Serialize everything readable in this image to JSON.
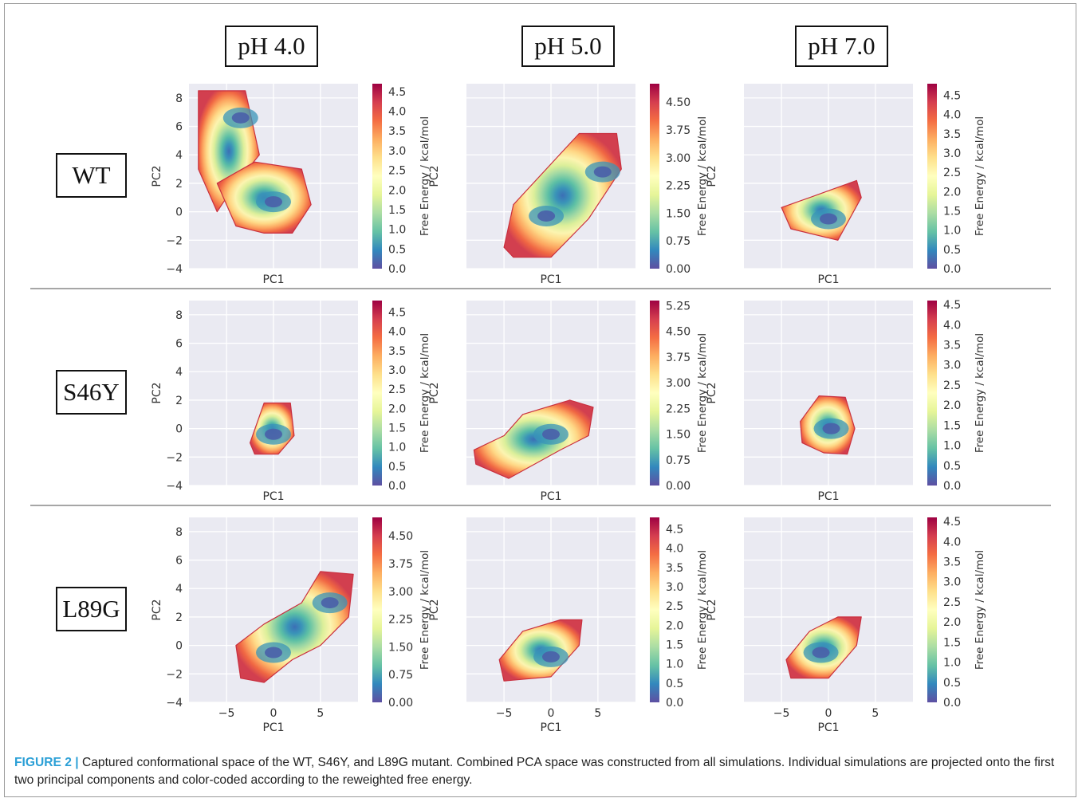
{
  "figure": {
    "column_headers": [
      "pH 4.0",
      "pH 5.0",
      "pH 7.0"
    ],
    "row_labels": [
      "WT",
      "S46Y",
      "L89G"
    ],
    "caption_label": "FIGURE 2 |",
    "caption_text": " Captured conformational space of the WT, S46Y, and L89G mutant. Combined PCA space was constructed from all simulations. Individual simulations are projected onto the first two principal components and color-coded according to the reweighted free energy."
  },
  "chart_data": [
    {
      "panel": "WT pH 4.0",
      "type": "heatmap",
      "xlabel": "PC1",
      "ylabel": "PC2",
      "ylim": [
        -4,
        9
      ],
      "xlim": [
        -9,
        9
      ],
      "yticks": [
        -4,
        -2,
        0,
        2,
        4,
        6,
        8
      ],
      "xticks": [],
      "colorbar": {
        "label": "Free Energy / kcal/mol",
        "ticks": [
          "0.0",
          "0.5",
          "1.0",
          "1.5",
          "2.0",
          "2.5",
          "3.0",
          "3.5",
          "4.0",
          "4.5"
        ],
        "range": [
          0,
          4.7
        ]
      },
      "minima": [
        {
          "x": -3.5,
          "y": 6.6
        },
        {
          "x": 0,
          "y": 0.7
        }
      ],
      "regions": [
        {
          "x": [
            -8,
            -3,
            -1.5,
            -4,
            -6,
            -8
          ],
          "y": [
            8.5,
            8.5,
            4,
            2,
            0,
            3
          ]
        },
        {
          "x": [
            -6,
            -2,
            3,
            4,
            2,
            -1,
            -4
          ],
          "y": [
            2,
            3.5,
            3,
            0.5,
            -1.5,
            -1.5,
            -1
          ]
        }
      ]
    },
    {
      "panel": "WT pH 5.0",
      "type": "heatmap",
      "xlabel": "PC1",
      "ylabel": "PC2",
      "ylim": [
        -4,
        9
      ],
      "xlim": [
        -9,
        9
      ],
      "yticks": [],
      "xticks": [],
      "colorbar": {
        "label": "Free Energy / kcal/mol",
        "ticks": [
          "0.00",
          "0.75",
          "1.50",
          "2.25",
          "3.00",
          "3.75",
          "4.50"
        ],
        "range": [
          0,
          5.0
        ]
      },
      "minima": [
        {
          "x": -0.5,
          "y": -0.3
        },
        {
          "x": 5.5,
          "y": 2.8
        }
      ],
      "regions": [
        {
          "x": [
            -5,
            -4,
            3,
            7,
            7.5,
            4,
            0,
            -4
          ],
          "y": [
            -2.5,
            0.5,
            5.5,
            5.5,
            3,
            -0.5,
            -3.2,
            -3.2
          ]
        }
      ]
    },
    {
      "panel": "WT pH 7.0",
      "type": "heatmap",
      "xlabel": "PC1",
      "ylabel": "PC2",
      "ylim": [
        -4,
        9
      ],
      "xlim": [
        -9,
        9
      ],
      "yticks": [],
      "xticks": [],
      "colorbar": {
        "label": "Free Energy / kcal/mol",
        "ticks": [
          "0.0",
          "0.5",
          "1.0",
          "1.5",
          "2.0",
          "2.5",
          "3.0",
          "3.5",
          "4.0",
          "4.5"
        ],
        "range": [
          0,
          4.8
        ]
      },
      "minima": [
        {
          "x": 0,
          "y": -0.5
        }
      ],
      "regions": [
        {
          "x": [
            -5,
            -2,
            3,
            3.5,
            1,
            -4
          ],
          "y": [
            0.3,
            1,
            2.2,
            1,
            -2,
            -1.2
          ]
        }
      ]
    },
    {
      "panel": "S46Y pH 4.0",
      "type": "heatmap",
      "xlabel": "PC1",
      "ylabel": "PC2",
      "ylim": [
        -4,
        9
      ],
      "xlim": [
        -9,
        9
      ],
      "yticks": [
        -4,
        -2,
        0,
        2,
        4,
        6,
        8
      ],
      "xticks": [],
      "colorbar": {
        "label": "Free Energy / kcal/mol",
        "ticks": [
          "0.0",
          "0.5",
          "1.0",
          "1.5",
          "2.0",
          "2.5",
          "3.0",
          "3.5",
          "4.0",
          "4.5"
        ],
        "range": [
          0,
          4.8
        ]
      },
      "minima": [
        {
          "x": 0,
          "y": -0.4
        }
      ],
      "regions": [
        {
          "x": [
            -2.5,
            -1,
            1.8,
            2.2,
            0.5,
            -2
          ],
          "y": [
            -1,
            1.8,
            1.8,
            -0.5,
            -1.8,
            -1.8
          ]
        }
      ]
    },
    {
      "panel": "S46Y pH 5.0",
      "type": "heatmap",
      "xlabel": "PC1",
      "ylabel": "PC2",
      "ylim": [
        -4,
        9
      ],
      "xlim": [
        -9,
        9
      ],
      "yticks": [],
      "xticks": [],
      "colorbar": {
        "label": "Free Energy / kcal/mol",
        "ticks": [
          "0.00",
          "0.75",
          "1.50",
          "2.25",
          "3.00",
          "3.75",
          "4.50",
          "5.25"
        ],
        "range": [
          0,
          5.4
        ]
      },
      "minima": [
        {
          "x": 0,
          "y": -0.4
        }
      ],
      "regions": [
        {
          "x": [
            -8.2,
            -5,
            -3,
            2,
            4.5,
            4,
            1,
            -4.5,
            -8
          ],
          "y": [
            -1.5,
            -0.5,
            1,
            2,
            1.5,
            -0.5,
            -1.5,
            -3.5,
            -2.5
          ]
        }
      ]
    },
    {
      "panel": "S46Y pH 7.0",
      "type": "heatmap",
      "xlabel": "PC1",
      "ylabel": "PC2",
      "ylim": [
        -4,
        9
      ],
      "xlim": [
        -9,
        9
      ],
      "yticks": [],
      "xticks": [],
      "colorbar": {
        "label": "Free Energy / kcal/mol",
        "ticks": [
          "0.0",
          "0.5",
          "1.0",
          "1.5",
          "2.0",
          "2.5",
          "3.0",
          "3.5",
          "4.0",
          "4.5"
        ],
        "range": [
          0,
          4.6
        ]
      },
      "minima": [
        {
          "x": 0.3,
          "y": 0
        }
      ],
      "regions": [
        {
          "x": [
            -3,
            -1,
            1.8,
            2.8,
            2,
            -0.5,
            -2.8
          ],
          "y": [
            0.5,
            2.3,
            2.2,
            0,
            -1.8,
            -1.7,
            -1
          ]
        }
      ]
    },
    {
      "panel": "L89G pH 4.0",
      "type": "heatmap",
      "xlabel": "PC1",
      "ylabel": "PC2",
      "ylim": [
        -4,
        9
      ],
      "xlim": [
        -9,
        9
      ],
      "yticks": [
        -4,
        -2,
        0,
        2,
        4,
        6,
        8
      ],
      "xticks": [
        -5,
        0,
        5
      ],
      "colorbar": {
        "label": "Free Energy / kcal/mol",
        "ticks": [
          "0.00",
          "0.75",
          "1.50",
          "2.25",
          "3.00",
          "3.75",
          "4.50"
        ],
        "range": [
          0,
          5.0
        ]
      },
      "minima": [
        {
          "x": 0,
          "y": -0.5
        },
        {
          "x": 6,
          "y": 3
        }
      ],
      "regions": [
        {
          "x": [
            -4,
            -1,
            3,
            5,
            8.5,
            8,
            5,
            2,
            -1,
            -3.5
          ],
          "y": [
            0,
            1.5,
            3,
            5.2,
            5,
            2,
            0,
            -1,
            -2.6,
            -2.3
          ]
        }
      ]
    },
    {
      "panel": "L89G pH 5.0",
      "type": "heatmap",
      "xlabel": "PC1",
      "ylabel": "PC2",
      "ylim": [
        -4,
        9
      ],
      "xlim": [
        -9,
        9
      ],
      "yticks": [],
      "xticks": [
        -5,
        0,
        5
      ],
      "colorbar": {
        "label": "Free Energy / kcal/mol",
        "ticks": [
          "0.0",
          "0.5",
          "1.0",
          "1.5",
          "2.0",
          "2.5",
          "3.0",
          "3.5",
          "4.0",
          "4.5"
        ],
        "range": [
          0,
          4.8
        ]
      },
      "minima": [
        {
          "x": 0,
          "y": -0.8
        }
      ],
      "regions": [
        {
          "x": [
            -5.5,
            -3,
            1,
            3.3,
            3,
            0,
            -5
          ],
          "y": [
            -1,
            1,
            1.8,
            1.8,
            0,
            -2.2,
            -2.5
          ]
        }
      ]
    },
    {
      "panel": "L89G pH 7.0",
      "type": "heatmap",
      "xlabel": "PC1",
      "ylabel": "PC2",
      "ylim": [
        -4,
        9
      ],
      "xlim": [
        -9,
        9
      ],
      "yticks": [],
      "xticks": [
        -5,
        0,
        5
      ],
      "colorbar": {
        "label": "Free Energy / kcal/mol",
        "ticks": [
          "0.0",
          "0.5",
          "1.0",
          "1.5",
          "2.0",
          "2.5",
          "3.0",
          "3.5",
          "4.0",
          "4.5"
        ],
        "range": [
          0,
          4.6
        ]
      },
      "minima": [
        {
          "x": -0.8,
          "y": -0.5
        }
      ],
      "regions": [
        {
          "x": [
            -4.5,
            -2,
            1,
            3.5,
            3,
            0,
            -4
          ],
          "y": [
            -1,
            1,
            2,
            2,
            0,
            -2.3,
            -2.3
          ]
        }
      ]
    }
  ]
}
